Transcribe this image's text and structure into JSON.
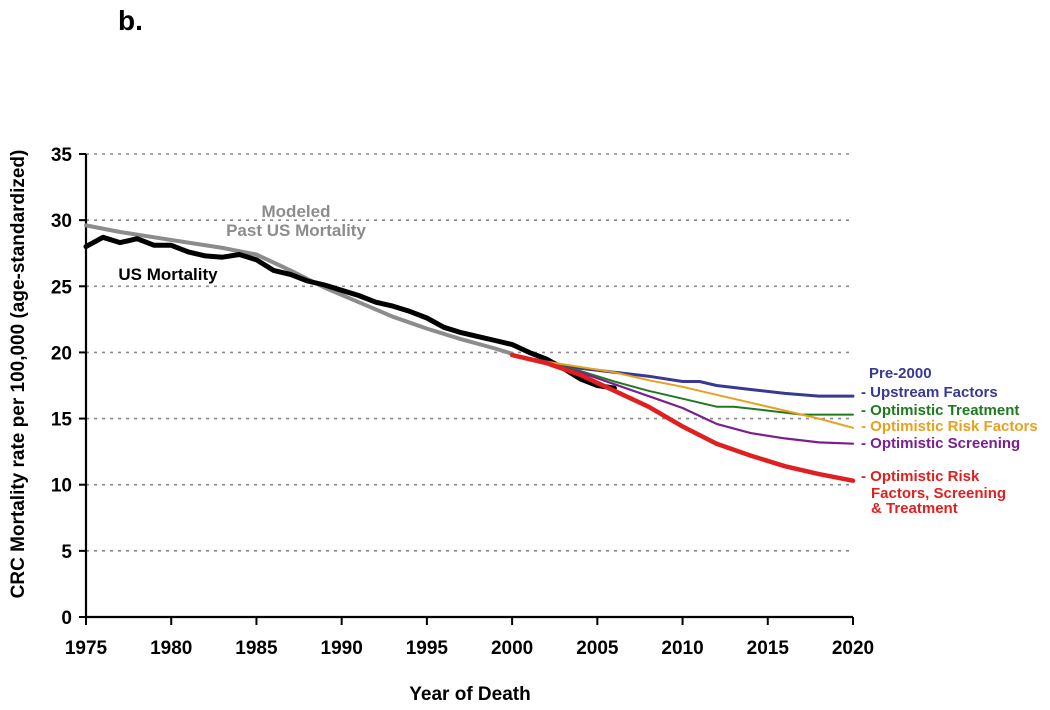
{
  "chart_data": {
    "type": "line",
    "panel_label": "b.",
    "xlabel": "Year of Death",
    "ylabel": "CRC Mortality rate per 100,000 (age-standardized)",
    "xlim": [
      1975,
      2020
    ],
    "ylim": [
      0,
      35
    ],
    "x_ticks": [
      "1975",
      "1980",
      "1985",
      "1990",
      "1995",
      "2000",
      "2005",
      "2010",
      "2015",
      "2020"
    ],
    "y_ticks": [
      "0",
      "5",
      "10",
      "15",
      "20",
      "25",
      "30",
      "35"
    ],
    "grid": "horizontal dotted",
    "annotations": {
      "modeled_line1": "Modeled",
      "modeled_line2": "Past US Mortality",
      "us_mortality": "US Mortality"
    },
    "series": [
      {
        "name": "US Mortality",
        "color": "#000000",
        "x": [
          1975,
          1976,
          1977,
          1978,
          1979,
          1980,
          1981,
          1982,
          1983,
          1984,
          1985,
          1986,
          1987,
          1988,
          1989,
          1990,
          1991,
          1992,
          1993,
          1994,
          1995,
          1996,
          1997,
          1998,
          1999,
          2000,
          2001,
          2002,
          2003,
          2004,
          2005,
          2006
        ],
        "values": [
          28.0,
          28.7,
          28.3,
          28.6,
          28.1,
          28.1,
          27.6,
          27.3,
          27.2,
          27.4,
          27.0,
          26.2,
          25.9,
          25.4,
          25.1,
          24.7,
          24.3,
          23.8,
          23.5,
          23.1,
          22.6,
          21.9,
          21.5,
          21.2,
          20.9,
          20.6,
          20.0,
          19.5,
          18.8,
          18.0,
          17.5,
          17.3
        ]
      },
      {
        "name": "Modeled Past US Mortality",
        "color": "#8c8c8c",
        "x": [
          1975,
          1977,
          1979,
          1981,
          1983,
          1985,
          1987,
          1989,
          1991,
          1993,
          1995,
          1997,
          1999,
          2000
        ],
        "values": [
          29.6,
          29.1,
          28.7,
          28.3,
          27.9,
          27.4,
          26.2,
          24.9,
          23.8,
          22.7,
          21.8,
          21.0,
          20.3,
          19.9
        ]
      },
      {
        "name": "Pre-2000 Upstream Factors",
        "label_lines": [
          "Pre-2000",
          "- Upstream Factors"
        ],
        "color": "#383895",
        "x": [
          2000,
          2002,
          2004,
          2006,
          2008,
          2010,
          2011,
          2012,
          2014,
          2016,
          2018,
          2020
        ],
        "values": [
          19.8,
          19.3,
          18.8,
          18.5,
          18.2,
          17.8,
          17.8,
          17.5,
          17.2,
          16.9,
          16.7,
          16.7
        ]
      },
      {
        "name": "Optimistic Treatment",
        "label_lines": [
          "- Optimistic Treatment"
        ],
        "color": "#1f7a1f",
        "x": [
          2000,
          2002,
          2004,
          2006,
          2008,
          2010,
          2012,
          2013,
          2015,
          2017,
          2020
        ],
        "values": [
          19.8,
          19.2,
          18.6,
          17.8,
          17.1,
          16.5,
          15.9,
          15.9,
          15.6,
          15.3,
          15.3
        ]
      },
      {
        "name": "Optimistic Risk Factors",
        "label_lines": [
          "- Optimistic Risk Factors"
        ],
        "color": "#e8a020",
        "x": [
          2000,
          2002,
          2004,
          2006,
          2008,
          2010,
          2012,
          2014,
          2016,
          2018,
          2020
        ],
        "values": [
          19.8,
          19.3,
          18.9,
          18.5,
          17.9,
          17.4,
          16.8,
          16.2,
          15.6,
          15.0,
          14.3
        ]
      },
      {
        "name": "Optimistic Screening",
        "label_lines": [
          "- Optimistic Screening"
        ],
        "color": "#7a1f8f",
        "x": [
          2000,
          2002,
          2004,
          2006,
          2008,
          2010,
          2012,
          2014,
          2016,
          2018,
          2020
        ],
        "values": [
          19.8,
          19.2,
          18.5,
          17.6,
          16.7,
          15.8,
          14.6,
          13.9,
          13.5,
          13.2,
          13.1
        ]
      },
      {
        "name": "Optimistic Risk Factors, Screening & Treatment",
        "label_lines": [
          "- Optimistic Risk",
          "Factors, Screening",
          "& Treatment"
        ],
        "color": "#e02020",
        "x": [
          2000,
          2002,
          2004,
          2006,
          2008,
          2010,
          2012,
          2014,
          2016,
          2018,
          2020
        ],
        "values": [
          19.8,
          19.2,
          18.3,
          17.1,
          15.9,
          14.4,
          13.1,
          12.2,
          11.4,
          10.8,
          10.3
        ]
      }
    ]
  }
}
